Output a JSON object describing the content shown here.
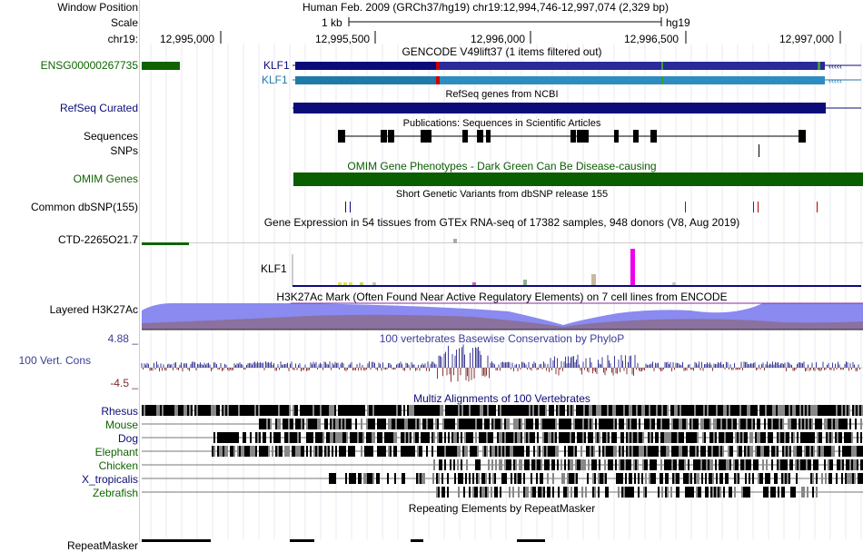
{
  "header": {
    "window_position_label": "Window Position",
    "window_position_value": "Human Feb. 2009 (GRCh37/hg19)   chr19:12,994,746-12,997,074 (2,329 bp)",
    "scale_label": "Scale",
    "scale_bar_label": "1 kb",
    "assembly": "hg19",
    "chrom_label": "chr19:",
    "ruler_ticks": [
      "12,995,000",
      "12,995,500",
      "12,996,000",
      "12,996,500",
      "12,997,000"
    ]
  },
  "tracks": {
    "gencode": {
      "title": "GENCODE V49lift37 (1 items filtered out)",
      "side_label": "ENSG00000267735",
      "gene1": "KLF1",
      "gene2": "KLF1",
      "color": "#0f6300"
    },
    "refseq": {
      "label": "RefSeq Curated",
      "title": "RefSeq genes from NCBI",
      "color": "#0c0c78"
    },
    "publications": {
      "title": "Publications: Sequences in Scientific Articles",
      "label_sequences": "Sequences",
      "label_snps": "SNPs"
    },
    "omim": {
      "label": "OMIM Genes",
      "bar_text": "OMIM Gene Phenotypes - Dark Green Can Be Disease-causing",
      "color": "#0a5e00"
    },
    "dbsnp": {
      "label": "Common dbSNP(155)",
      "title": "Short Genetic Variants from dbSNP release 155"
    },
    "gtex": {
      "title": "Gene Expression in 54 tissues from GTEx RNA-seq of 17382 samples, 948 donors (V8, Aug 2019)",
      "label_ctd": "CTD-2265O21.7",
      "label_klf1": "KLF1"
    },
    "h3k27ac": {
      "label": "Layered H3K27Ac",
      "title": "H3K27Ac Mark (Often Found Near Active Regulatory Elements) on 7 cell lines from ENCODE"
    },
    "conservation": {
      "label": "100 Vert. Cons",
      "title": "100 vertebrates Basewise Conservation by PhyloP",
      "max_label": "4.88 _",
      "min_label": "-4.5 _",
      "color": "#3c3c96"
    },
    "multiz": {
      "title": "Multiz Alignments of 100 Vertebrates",
      "species": [
        {
          "name": "Rhesus",
          "color": "#0c0c78"
        },
        {
          "name": "Mouse",
          "color": "#0f6300"
        },
        {
          "name": "Dog",
          "color": "#0c0c78"
        },
        {
          "name": "Elephant",
          "color": "#0f6300"
        },
        {
          "name": "Chicken",
          "color": "#0f6300"
        },
        {
          "name": "X_tropicalis",
          "color": "#0c0c78"
        },
        {
          "name": "Zebrafish",
          "color": "#0f6300"
        }
      ]
    },
    "repeatmasker": {
      "label": "RepeatMasker",
      "title": "Repeating Elements by RepeatMasker"
    }
  }
}
